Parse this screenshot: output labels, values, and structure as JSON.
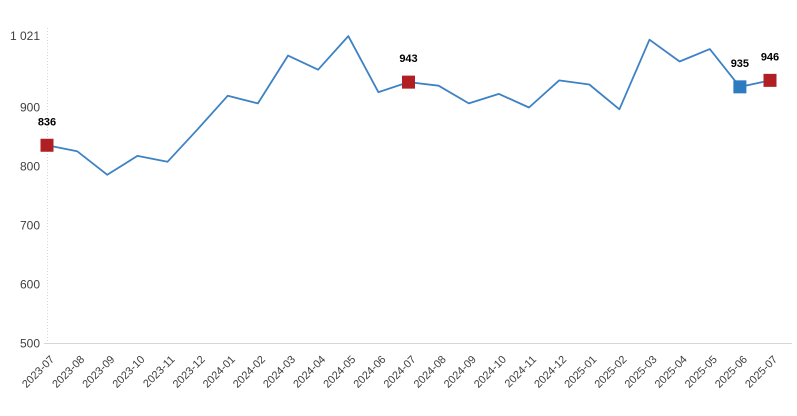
{
  "page": {
    "background": "#ffffff"
  },
  "chart_data": {
    "type": "line",
    "title": "",
    "xlabel": "",
    "ylabel": "",
    "legend": false,
    "grid": false,
    "categories": [
      "2023-07",
      "2023-08",
      "2023-09",
      "2023-10",
      "2023-11",
      "2023-12",
      "2024-01",
      "2024-02",
      "2024-03",
      "2024-04",
      "2024-05",
      "2024-06",
      "2024-07",
      "2024-08",
      "2024-09",
      "2024-10",
      "2024-11",
      "2024-12",
      "2025-01",
      "2025-02",
      "2025-03",
      "2025-04",
      "2025-05",
      "2025-06",
      "2025-07"
    ],
    "values": [
      836,
      826,
      786,
      818,
      808,
      863,
      920,
      907,
      988,
      964,
      1021,
      926,
      943,
      937,
      907,
      923,
      900,
      946,
      939,
      897,
      1015,
      978,
      999,
      935,
      946
    ],
    "ylim": [
      500,
      1021
    ],
    "yticks": [
      {
        "value": 1021,
        "label": "1 021"
      },
      {
        "value": 900,
        "label": "900"
      },
      {
        "value": 800,
        "label": "800"
      },
      {
        "value": 700,
        "label": "700"
      },
      {
        "value": 600,
        "label": "600"
      },
      {
        "value": 500,
        "label": "500"
      }
    ],
    "highlights": [
      {
        "index": 0,
        "label": "836",
        "color": "#b01f24"
      },
      {
        "index": 12,
        "label": "943",
        "color": "#b01f24"
      },
      {
        "index": 23,
        "label": "935",
        "color": "#2e7bbf"
      },
      {
        "index": 24,
        "label": "946",
        "color": "#b01f24"
      }
    ],
    "colors": {
      "line": "#3d82c4",
      "axis_line": "#d6d6d6",
      "tick_text": "#404040",
      "value_label_text": "#000000"
    }
  }
}
